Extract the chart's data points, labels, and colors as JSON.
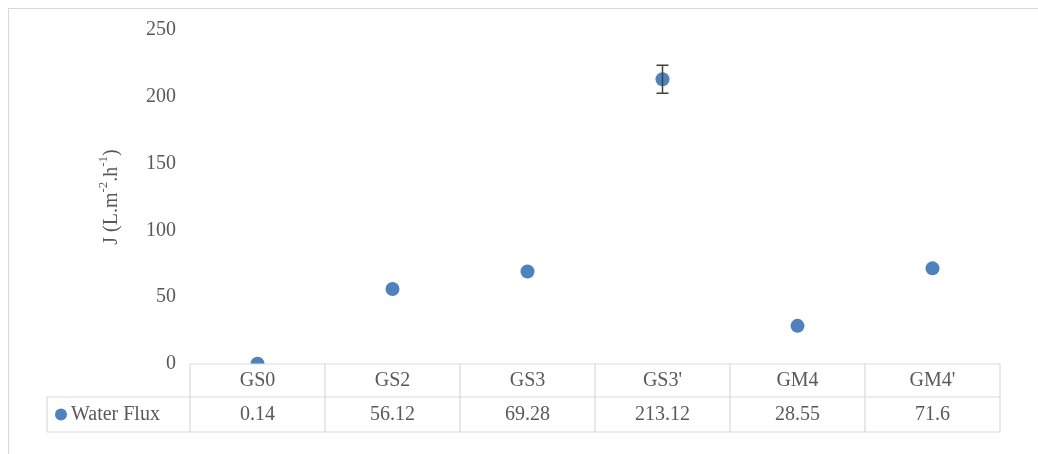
{
  "chart_data": {
    "type": "scatter",
    "ylabel": "J (L.m$^{-2}$.h$^{-1}$)",
    "categories": [
      "GS0",
      "GS2",
      "GS3",
      "GS3'",
      "GM4",
      "GM4'"
    ],
    "series": [
      {
        "name": "Water Flux",
        "color": "#4f81bd",
        "values": [
          0.14,
          56.12,
          69.28,
          213.12,
          28.55,
          71.6
        ],
        "errors": [
          null,
          null,
          null,
          10.5,
          null,
          null
        ]
      }
    ],
    "ylim": [
      0,
      250
    ],
    "yticks": [
      0,
      50,
      100,
      150,
      200,
      250
    ],
    "grid": false,
    "legend": "bottom",
    "marker": "circle",
    "data_labels": true
  }
}
